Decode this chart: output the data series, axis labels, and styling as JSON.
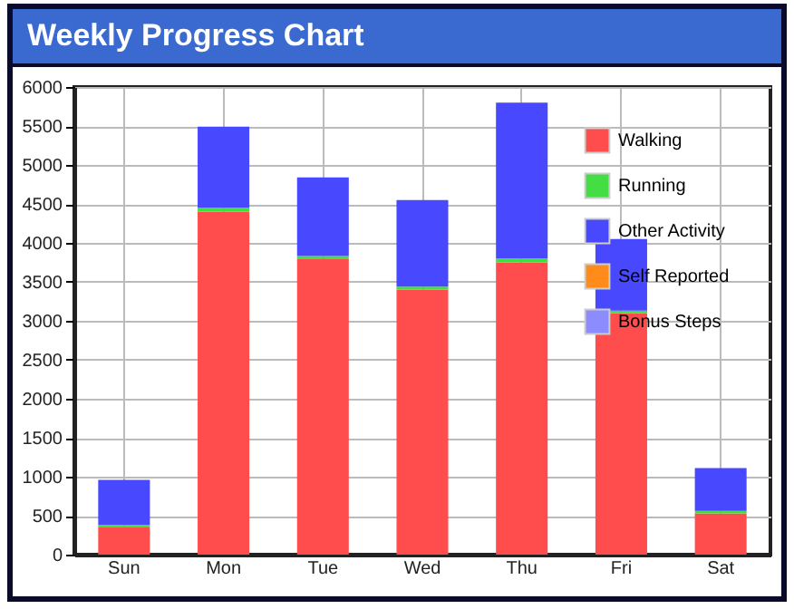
{
  "chart_data": {
    "type": "bar",
    "title": "Weekly Progress Chart",
    "stacked": true,
    "categories": [
      "Sun",
      "Mon",
      "Tue",
      "Wed",
      "Thu",
      "Fri",
      "Sat"
    ],
    "series": [
      {
        "name": "Walking",
        "color": "#ff4c4c",
        "values": [
          350,
          4400,
          3800,
          3400,
          3750,
          3100,
          530
        ]
      },
      {
        "name": "Running",
        "color": "#44dd44",
        "values": [
          30,
          50,
          30,
          40,
          50,
          30,
          30
        ]
      },
      {
        "name": "Other Activity",
        "color": "#4848ff",
        "values": [
          580,
          1040,
          1010,
          1110,
          2000,
          920,
          550
        ]
      },
      {
        "name": "Self Reported",
        "color": "#ff8c1a",
        "values": [
          null,
          null,
          null,
          null,
          null,
          null,
          null
        ]
      },
      {
        "name": "Bonus Steps",
        "color": "#8c8cff",
        "values": [
          null,
          null,
          null,
          null,
          null,
          null,
          null
        ]
      }
    ],
    "ylim": [
      0,
      6000
    ],
    "yticks": [
      0,
      500,
      1000,
      1500,
      2000,
      2500,
      3000,
      3500,
      4000,
      4500,
      5000,
      5500,
      6000
    ],
    "grid": true,
    "legend": "top right"
  }
}
